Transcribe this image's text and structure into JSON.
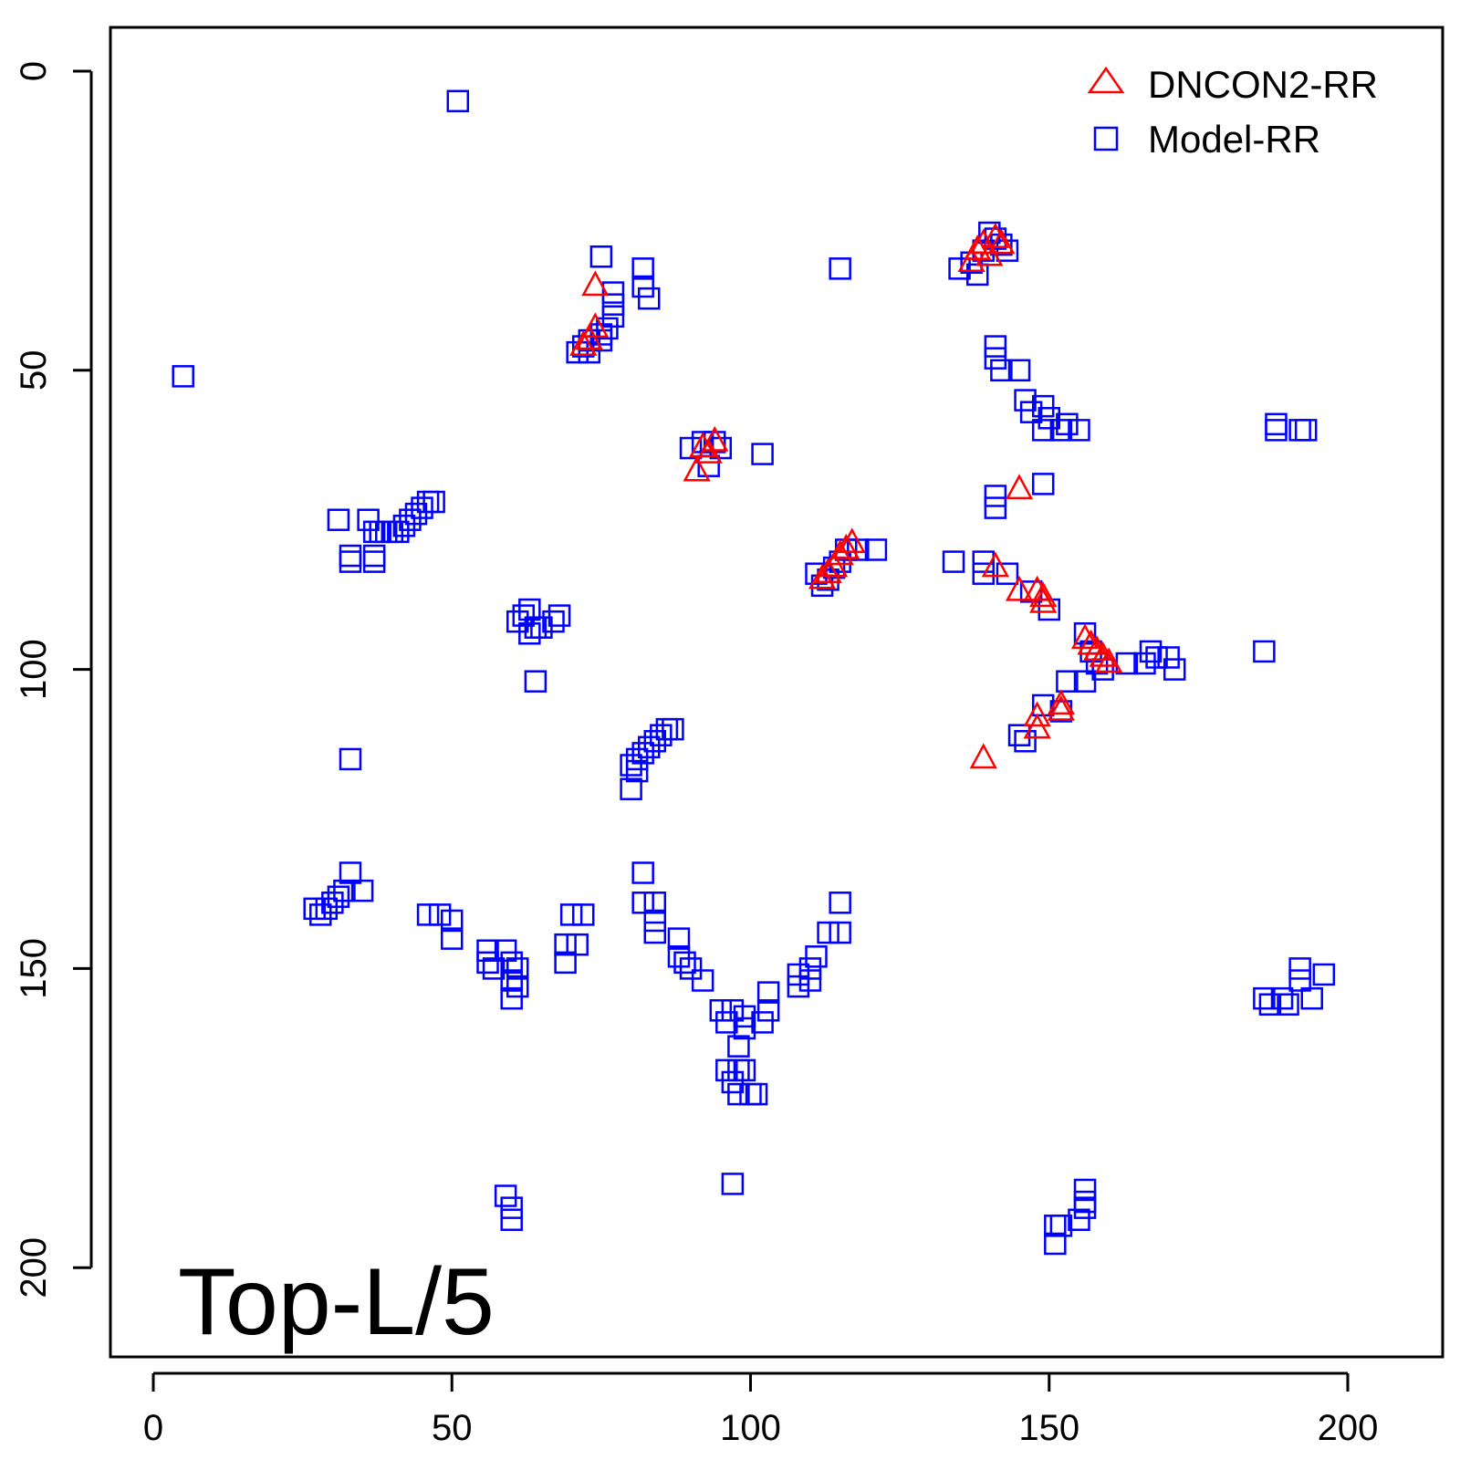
{
  "chart_data": {
    "type": "scatter",
    "title": "",
    "xlabel": "",
    "ylabel": "",
    "xlim": [
      -7,
      216
    ],
    "ylim": [
      -7,
      214
    ],
    "y_inverted": true,
    "x_ticks": [
      0,
      50,
      100,
      150,
      200
    ],
    "y_ticks": [
      0,
      50,
      100,
      150,
      200
    ],
    "x_tick_labels": [
      "0",
      "50",
      "100",
      "150",
      "200"
    ],
    "y_tick_labels": [
      "0",
      "50",
      "100",
      "150",
      "200"
    ],
    "grid": false,
    "legend_position": "top-right",
    "annotation": "Top-L/5",
    "series": [
      {
        "name": "DNCON2-RR",
        "marker": "triangle",
        "color": "#ff0000",
        "points": [
          [
            74,
            36
          ],
          [
            74,
            43
          ],
          [
            73,
            45
          ],
          [
            72,
            46
          ],
          [
            92,
            63
          ],
          [
            93,
            64
          ],
          [
            91,
            67
          ],
          [
            94,
            62
          ],
          [
            138,
            30
          ],
          [
            139,
            29
          ],
          [
            140,
            31
          ],
          [
            141,
            28
          ],
          [
            142,
            29
          ],
          [
            137,
            32
          ],
          [
            145,
            70
          ],
          [
            141,
            83
          ],
          [
            145,
            87
          ],
          [
            148,
            87
          ],
          [
            149,
            88
          ],
          [
            149,
            89
          ],
          [
            112,
            85
          ],
          [
            113,
            84
          ],
          [
            114,
            83
          ],
          [
            115,
            81
          ],
          [
            116,
            80
          ],
          [
            117,
            79
          ],
          [
            156,
            95
          ],
          [
            157,
            96
          ],
          [
            158,
            97
          ],
          [
            159,
            98
          ],
          [
            160,
            99
          ],
          [
            152,
            106
          ],
          [
            152,
            107
          ],
          [
            148,
            108
          ],
          [
            148,
            110
          ],
          [
            139,
            115
          ]
        ]
      },
      {
        "name": "Model-RR",
        "marker": "square",
        "color": "#0000ff",
        "points": [
          [
            51,
            5
          ],
          [
            5,
            51
          ],
          [
            75,
            31
          ],
          [
            82,
            33
          ],
          [
            82,
            36
          ],
          [
            83,
            38
          ],
          [
            77,
            37
          ],
          [
            77,
            39
          ],
          [
            77,
            41
          ],
          [
            76,
            43
          ],
          [
            75,
            44
          ],
          [
            73,
            45
          ],
          [
            72,
            46
          ],
          [
            71,
            47
          ],
          [
            73,
            47
          ],
          [
            75,
            45
          ],
          [
            115,
            33
          ],
          [
            135,
            33
          ],
          [
            138,
            34
          ],
          [
            140,
            27
          ],
          [
            141,
            28
          ],
          [
            142,
            29
          ],
          [
            143,
            30
          ],
          [
            139,
            30
          ],
          [
            137,
            32
          ],
          [
            141,
            46
          ],
          [
            141,
            48
          ],
          [
            142,
            50
          ],
          [
            145,
            50
          ],
          [
            146,
            55
          ],
          [
            147,
            57
          ],
          [
            149,
            56
          ],
          [
            150,
            58
          ],
          [
            149,
            60
          ],
          [
            152,
            60
          ],
          [
            153,
            59
          ],
          [
            155,
            60
          ],
          [
            188,
            59
          ],
          [
            188,
            60
          ],
          [
            192,
            60
          ],
          [
            193,
            60
          ],
          [
            90,
            63
          ],
          [
            92,
            62
          ],
          [
            94,
            62
          ],
          [
            95,
            63
          ],
          [
            93,
            66
          ],
          [
            102,
            64
          ],
          [
            141,
            71
          ],
          [
            141,
            73
          ],
          [
            149,
            69
          ],
          [
            31,
            75
          ],
          [
            36,
            75
          ],
          [
            37,
            77
          ],
          [
            38,
            77
          ],
          [
            39,
            77
          ],
          [
            40,
            77
          ],
          [
            41,
            77
          ],
          [
            42,
            76
          ],
          [
            43,
            75
          ],
          [
            44,
            74
          ],
          [
            45,
            73
          ],
          [
            46,
            72
          ],
          [
            47,
            72
          ],
          [
            33,
            81
          ],
          [
            33,
            82
          ],
          [
            37,
            81
          ],
          [
            37,
            82
          ],
          [
            111,
            84
          ],
          [
            112,
            86
          ],
          [
            113,
            85
          ],
          [
            114,
            83
          ],
          [
            115,
            82
          ],
          [
            116,
            80
          ],
          [
            118,
            80
          ],
          [
            121,
            80
          ],
          [
            134,
            82
          ],
          [
            139,
            82
          ],
          [
            139,
            84
          ],
          [
            143,
            84
          ],
          [
            147,
            87
          ],
          [
            150,
            90
          ],
          [
            61,
            92
          ],
          [
            62,
            91
          ],
          [
            63,
            90
          ],
          [
            63,
            94
          ],
          [
            64,
            93
          ],
          [
            65,
            93
          ],
          [
            67,
            92
          ],
          [
            68,
            91
          ],
          [
            64,
            102
          ],
          [
            156,
            94
          ],
          [
            157,
            97
          ],
          [
            158,
            99
          ],
          [
            159,
            100
          ],
          [
            153,
            102
          ],
          [
            156,
            102
          ],
          [
            163,
            99
          ],
          [
            166,
            99
          ],
          [
            167,
            97
          ],
          [
            168,
            98
          ],
          [
            170,
            98
          ],
          [
            171,
            100
          ],
          [
            186,
            97
          ],
          [
            152,
            107
          ],
          [
            149,
            106
          ],
          [
            145,
            111
          ],
          [
            146,
            112
          ],
          [
            33,
            115
          ],
          [
            80,
            116
          ],
          [
            81,
            115
          ],
          [
            81,
            117
          ],
          [
            82,
            114
          ],
          [
            83,
            113
          ],
          [
            84,
            112
          ],
          [
            85,
            111
          ],
          [
            86,
            110
          ],
          [
            87,
            110
          ],
          [
            80,
            120
          ],
          [
            33,
            134
          ],
          [
            32,
            137
          ],
          [
            31,
            138
          ],
          [
            30,
            139
          ],
          [
            29,
            140
          ],
          [
            28,
            141
          ],
          [
            27,
            140
          ],
          [
            35,
            137
          ],
          [
            82,
            134
          ],
          [
            82,
            139
          ],
          [
            84,
            139
          ],
          [
            84,
            142
          ],
          [
            84,
            144
          ],
          [
            46,
            141
          ],
          [
            48,
            141
          ],
          [
            50,
            142
          ],
          [
            50,
            145
          ],
          [
            72,
            141
          ],
          [
            70,
            141
          ],
          [
            71,
            146
          ],
          [
            69,
            146
          ],
          [
            69,
            149
          ],
          [
            56,
            147
          ],
          [
            59,
            147
          ],
          [
            56,
            149
          ],
          [
            57,
            150
          ],
          [
            60,
            149
          ],
          [
            61,
            150
          ],
          [
            60,
            152
          ],
          [
            61,
            153
          ],
          [
            60,
            155
          ],
          [
            88,
            145
          ],
          [
            88,
            148
          ],
          [
            89,
            149
          ],
          [
            90,
            150
          ],
          [
            92,
            152
          ],
          [
            115,
            139
          ],
          [
            113,
            144
          ],
          [
            115,
            144
          ],
          [
            110,
            150
          ],
          [
            110,
            152
          ],
          [
            111,
            148
          ],
          [
            108,
            151
          ],
          [
            108,
            153
          ],
          [
            103,
            154
          ],
          [
            103,
            157
          ],
          [
            95,
            157
          ],
          [
            97,
            157
          ],
          [
            99,
            158
          ],
          [
            96,
            159
          ],
          [
            99,
            160
          ],
          [
            98,
            163
          ],
          [
            96,
            167
          ],
          [
            98,
            167
          ],
          [
            99,
            167
          ],
          [
            97,
            169
          ],
          [
            98,
            171
          ],
          [
            100,
            171
          ],
          [
            101,
            171
          ],
          [
            102,
            159
          ],
          [
            97,
            186
          ],
          [
            59,
            188
          ],
          [
            60,
            190
          ],
          [
            60,
            192
          ],
          [
            156,
            187
          ],
          [
            156,
            189
          ],
          [
            156,
            190
          ],
          [
            155,
            192
          ],
          [
            151,
            193
          ],
          [
            152,
            193
          ],
          [
            151,
            196
          ],
          [
            186,
            155
          ],
          [
            187,
            156
          ],
          [
            189,
            155
          ],
          [
            190,
            156
          ],
          [
            192,
            150
          ],
          [
            192,
            152
          ],
          [
            194,
            155
          ],
          [
            196,
            151
          ]
        ]
      }
    ]
  }
}
